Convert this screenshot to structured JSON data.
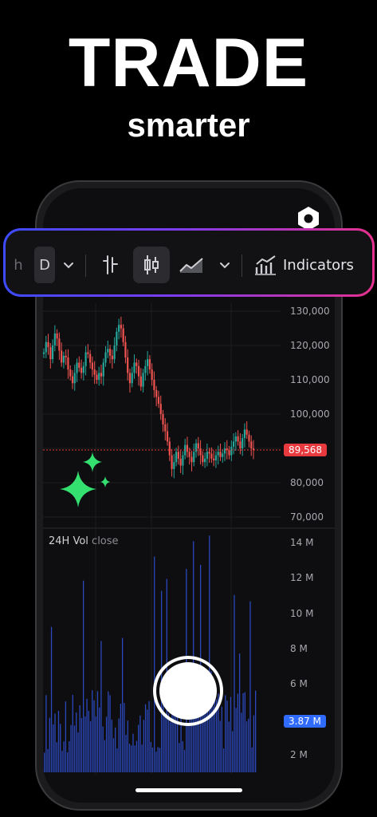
{
  "promo": {
    "headline": "TRADE",
    "subline": "smarter"
  },
  "toolbar": {
    "interval_partial": "h",
    "interval": "D",
    "indicators_label": "Indicators",
    "icons": [
      "chevron-down-icon",
      "bar-chart-icon",
      "candlestick-icon",
      "area-chart-icon",
      "chevron-down-icon",
      "indicators-icon"
    ]
  },
  "price_axis": {
    "ticks": [
      "130,000",
      "120,000",
      "110,000",
      "100,000",
      "80,000",
      "70,000"
    ],
    "current_price": "89,568"
  },
  "volume": {
    "title": "24H Vol",
    "title_sub": "close",
    "ticks": [
      "14 M",
      "12 M",
      "10 M",
      "8 M",
      "6 M",
      "2 M"
    ],
    "current": "3.87 M"
  },
  "colors": {
    "up": "#26a69a",
    "down": "#ef5350",
    "volume": "#2f4fcf",
    "price_badge": "#e8393e",
    "volume_badge": "#2f6bff",
    "sparkle": "#33e070"
  },
  "chart_data": {
    "type": "candlestick",
    "price_range": [
      70000,
      130000
    ],
    "current_price": 89568,
    "close_series": [
      118000,
      121000,
      119500,
      116000,
      120000,
      123500,
      122000,
      118500,
      115000,
      117000,
      116500,
      113000,
      111000,
      109000,
      112000,
      115000,
      113500,
      112000,
      114000,
      118000,
      117500,
      115000,
      113000,
      111500,
      110000,
      112000,
      111000,
      115000,
      118000,
      119000,
      117000,
      116000,
      120000,
      124000,
      126000,
      125000,
      121000,
      116500,
      112000,
      109000,
      112000,
      115000,
      114000,
      111000,
      108000,
      112000,
      114000,
      116000,
      113000,
      110000,
      107000,
      105000,
      103000,
      100000,
      97000,
      95000,
      92000,
      88000,
      84000,
      86000,
      89000,
      87000,
      85000,
      88000,
      91000,
      89000,
      87500,
      86000,
      89000,
      91500,
      90000,
      88000,
      86000,
      87000,
      89000,
      88500,
      87000,
      86500,
      88000,
      89000,
      87500,
      88500,
      90000,
      89500,
      88000,
      90500,
      92000,
      93500,
      92000,
      90000,
      93000,
      95500,
      94000,
      92000,
      90000,
      89568
    ],
    "volume_range": [
      0,
      14000000
    ],
    "current_volume": 3870000
  }
}
